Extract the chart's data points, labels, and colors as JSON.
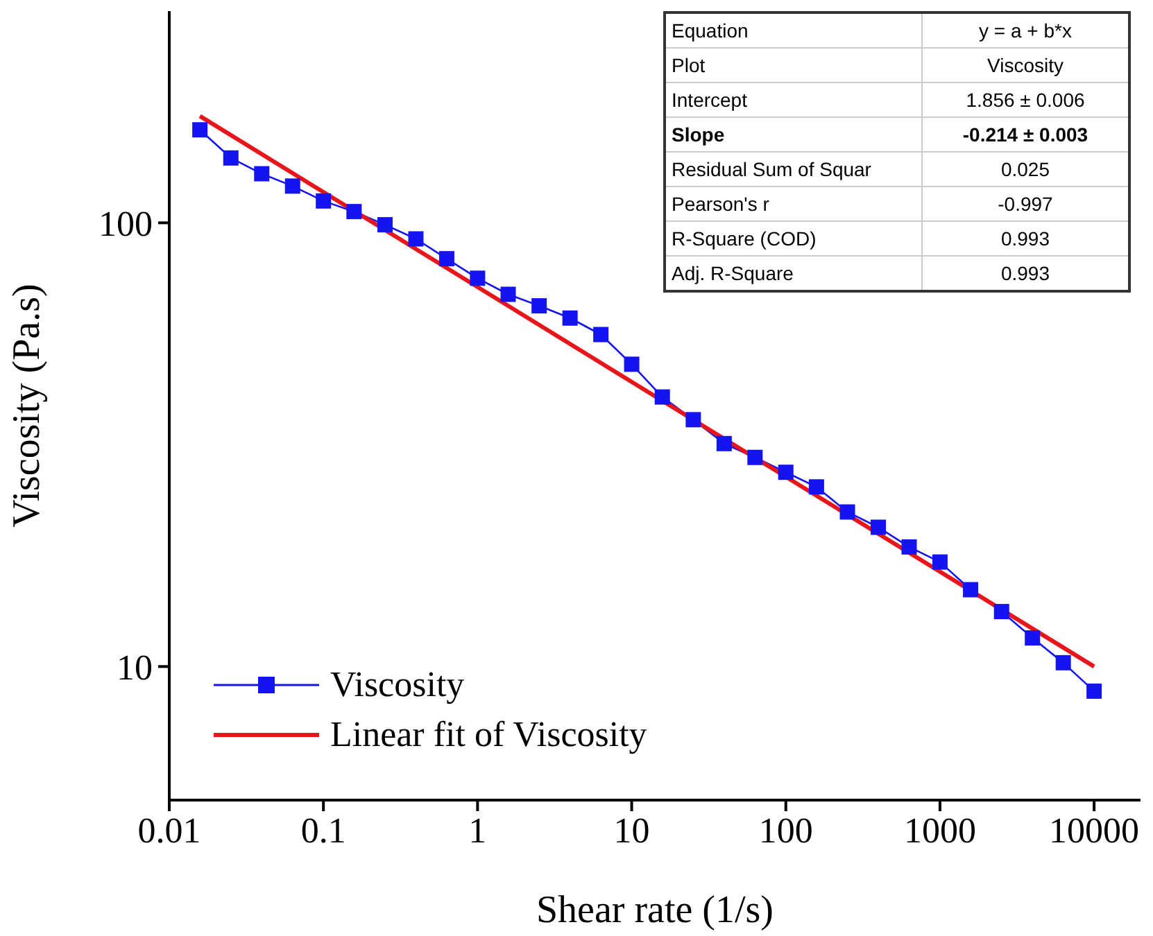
{
  "chart_data": {
    "type": "line",
    "xlabel": "Shear rate (1/s)",
    "ylabel": "Viscosity (Pa.s)",
    "log": "xy",
    "xlim": [
      0.01,
      20000
    ],
    "xticks": [
      0.01,
      0.1,
      1,
      10,
      100,
      1000,
      10000
    ],
    "ylim": [
      5,
      300
    ],
    "yticks": [
      10,
      100
    ],
    "grid": false,
    "legend": "bottom left",
    "series": [
      {
        "name": "Viscosity",
        "color": "#1414f0",
        "marker": "square",
        "line_style": "solid",
        "x": [
          0.0158,
          0.0251,
          0.0398,
          0.0631,
          0.1,
          0.158,
          0.251,
          0.398,
          0.631,
          1,
          1.58,
          2.51,
          3.98,
          6.31,
          10,
          15.8,
          25.1,
          39.8,
          63.1,
          100,
          158,
          251,
          398,
          631,
          1000,
          1580,
          2510,
          3980,
          6310,
          10000
        ],
        "values": [
          162,
          140,
          129,
          121,
          112,
          106,
          99,
          92,
          83,
          75,
          69,
          65,
          61,
          56,
          48,
          40.5,
          36,
          31.8,
          29.6,
          27.4,
          25.4,
          22.3,
          20.6,
          18.6,
          17.2,
          14.9,
          13.3,
          11.6,
          10.2,
          8.8
        ]
      },
      {
        "name": "Linear fit of Viscosity",
        "type": "line",
        "color": "#e8161b",
        "marker": "none",
        "line_style": "solid",
        "x": [
          0.0158,
          10000
        ],
        "values": [
          174,
          10
        ]
      }
    ],
    "annotations": [
      "Equation",
      "y = a + b*x",
      "Plot",
      "Viscosity",
      "Intercept",
      "1.856 ± 0.006",
      "Slope",
      "-0.214 ± 0.003",
      "Residual Sum of Squar",
      "0.025",
      "Pearson's r",
      "-0.997",
      "R-Square (COD)",
      "0.993",
      "Adj. R-Square",
      "0.993"
    ]
  }
}
